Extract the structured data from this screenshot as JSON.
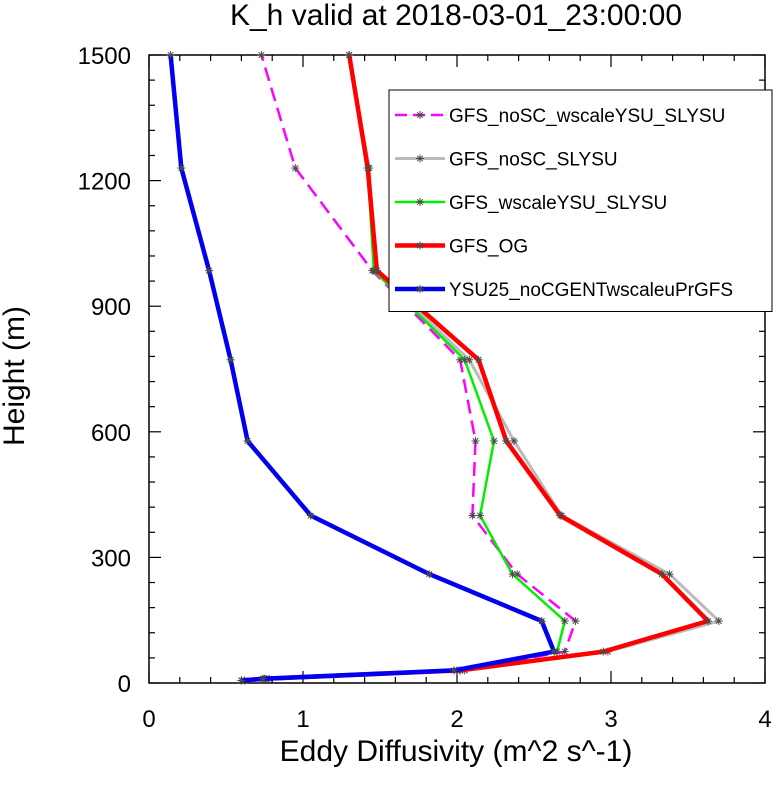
{
  "chart_data": {
    "type": "line",
    "title": "K_h valid at 2018-03-01_23:00:00",
    "xlabel": "Eddy Diffusivity (m^2 s^-1)",
    "ylabel": "Height (m)",
    "xlim": [
      0,
      4
    ],
    "ylim": [
      0,
      1500
    ],
    "x_ticks": [
      "0",
      "1",
      "2",
      "3",
      "4"
    ],
    "y_ticks": [
      "0",
      "300",
      "600",
      "900",
      "1200",
      "1500"
    ],
    "legend_position": "top-right",
    "grid": false,
    "series": [
      {
        "name": "GFS_noSC_wscaleYSU_SLYSU",
        "color": "#ff00ff",
        "dash": true,
        "width": 2.5,
        "points": [
          [
            0.6,
            6
          ],
          [
            0.74,
            10
          ],
          [
            2.02,
            30
          ],
          [
            2.7,
            75
          ],
          [
            2.77,
            148
          ],
          [
            2.39,
            260
          ],
          [
            2.1,
            400
          ],
          [
            2.12,
            578
          ],
          [
            2.02,
            772
          ],
          [
            1.45,
            985
          ],
          [
            0.95,
            1230
          ],
          [
            0.73,
            1500
          ]
        ]
      },
      {
        "name": "GFS_noSC_SLYSU",
        "color": "#bbbbbb",
        "dash": false,
        "width": 3,
        "points": [
          [
            0.62,
            6
          ],
          [
            0.78,
            10
          ],
          [
            2.05,
            30
          ],
          [
            2.98,
            75
          ],
          [
            3.7,
            148
          ],
          [
            3.38,
            260
          ],
          [
            2.68,
            400
          ],
          [
            2.37,
            578
          ],
          [
            2.08,
            772
          ],
          [
            1.47,
            985
          ],
          [
            1.43,
            1230
          ],
          [
            1.3,
            1500
          ]
        ]
      },
      {
        "name": "GFS_wscaleYSU_SLYSU",
        "color": "#00ee00",
        "dash": false,
        "width": 2.5,
        "points": [
          [
            0.62,
            6
          ],
          [
            0.76,
            10
          ],
          [
            2.0,
            30
          ],
          [
            2.65,
            75
          ],
          [
            2.7,
            148
          ],
          [
            2.36,
            260
          ],
          [
            2.15,
            400
          ],
          [
            2.24,
            578
          ],
          [
            2.05,
            772
          ],
          [
            1.46,
            985
          ],
          [
            1.42,
            1230
          ],
          [
            1.3,
            1500
          ]
        ]
      },
      {
        "name": "GFS_OG",
        "color": "#ff0000",
        "dash": false,
        "width": 4.5,
        "points": [
          [
            0.6,
            6
          ],
          [
            0.75,
            10
          ],
          [
            2.02,
            30
          ],
          [
            2.95,
            75
          ],
          [
            3.63,
            148
          ],
          [
            3.33,
            260
          ],
          [
            2.67,
            400
          ],
          [
            2.32,
            578
          ],
          [
            2.14,
            772
          ],
          [
            1.48,
            985
          ],
          [
            1.42,
            1230
          ],
          [
            1.3,
            1500
          ]
        ]
      },
      {
        "name": "YSU25_noCGENTwscaleuPrGFS",
        "color": "#0000ee",
        "dash": false,
        "width": 4.5,
        "points": [
          [
            0.6,
            6
          ],
          [
            0.74,
            10
          ],
          [
            1.98,
            30
          ],
          [
            2.63,
            75
          ],
          [
            2.55,
            148
          ],
          [
            1.82,
            260
          ],
          [
            1.05,
            400
          ],
          [
            0.64,
            578
          ],
          [
            0.53,
            772
          ],
          [
            0.39,
            985
          ],
          [
            0.21,
            1230
          ],
          [
            0.14,
            1500
          ]
        ]
      }
    ]
  }
}
